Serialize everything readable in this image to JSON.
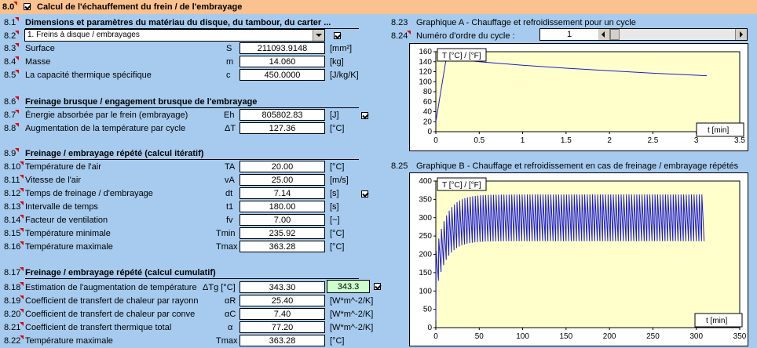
{
  "header": {
    "num": "8.0",
    "title": "Calcul de l'échauffement du frein / de l'embrayage"
  },
  "s81": {
    "num": "8.1",
    "title": "Dimensions et paramètres du matériau du disque, du tambour, du carter ..."
  },
  "s82": {
    "num": "8.2",
    "select_value": "1. Freins à disque / embrayages"
  },
  "s83": {
    "num": "8.3",
    "label": "Surface",
    "sym": "S",
    "value": "211093.9148",
    "unit": "[mm²]"
  },
  "s84": {
    "num": "8.4",
    "label": "Masse",
    "sym": "m",
    "value": "14.060",
    "unit": "[kg]"
  },
  "s85": {
    "num": "8.5",
    "label": "La capacité thermique spécifique",
    "sym": "c",
    "value": "450.0000",
    "unit": "[J/kg/K]"
  },
  "s86": {
    "num": "8.6",
    "title": "Freinage brusque / engagement brusque de l'embrayage"
  },
  "s87": {
    "num": "8.7",
    "label": "Énergie absorbée par le frein (embrayage)",
    "sym": "Eh",
    "value": "805802.83",
    "unit": "[J]"
  },
  "s88": {
    "num": "8.8",
    "label": "Augmentation de la température par cycle",
    "sym": "ΔT",
    "value": "127.36",
    "unit": "[°C]"
  },
  "s89": {
    "num": "8.9",
    "title": "Freinage / embrayage répété (calcul itératif)"
  },
  "s810": {
    "num": "8.10",
    "label": "Température de l'air",
    "sym": "TA",
    "value": "20.00",
    "unit": "[°C]"
  },
  "s811": {
    "num": "8.11",
    "label": "Vitesse de l'air",
    "sym": "vA",
    "value": "25.00",
    "unit": "[m/s]"
  },
  "s812": {
    "num": "8.12",
    "label": "Temps de freinage / d'embrayage",
    "sym": "dt",
    "value": "7.14",
    "unit": "[s]"
  },
  "s813": {
    "num": "8.13",
    "label": "Intervalle de temps",
    "sym": "t1",
    "value": "180.00",
    "unit": "[s]"
  },
  "s814": {
    "num": "8.14",
    "label": "Facteur de ventilation",
    "sym": "fv",
    "value": "7.00",
    "unit": "[~]"
  },
  "s815": {
    "num": "8.15",
    "label": "Température minimale",
    "sym": "Tmin",
    "value": "235.92",
    "unit": "[°C]"
  },
  "s816": {
    "num": "8.16",
    "label": "Température maximale",
    "sym": "Tmax",
    "value": "363.28",
    "unit": "[°C]"
  },
  "s817": {
    "num": "8.17",
    "title": "Freinage / embrayage répété (calcul cumulatif)"
  },
  "s818": {
    "num": "8.18",
    "label": "Estimation de l'augmentation de température",
    "sym": "ΔTg [°C]",
    "value": "343.30",
    "value2": "343.3"
  },
  "s819": {
    "num": "8.19",
    "label": "Coefficient de transfert de chaleur par rayonn",
    "sym": "αR",
    "value": "25.40",
    "unit": "[W*m^-2/K]"
  },
  "s820": {
    "num": "8.20",
    "label": "Coefficient de transfert de chaleur par conve",
    "sym": "αC",
    "value": "7.40",
    "unit": "[W*m^-2/K]"
  },
  "s821": {
    "num": "8.21",
    "label": "Coefficient de transfert thermique total",
    "sym": "α",
    "value": "77.20",
    "unit": "[W*m^-2/K]"
  },
  "s822": {
    "num": "8.22",
    "label": "Température maximale",
    "sym": "Tmax",
    "value": "363.28",
    "unit": "[°C]"
  },
  "s823": {
    "num": "8.23",
    "label": "Graphique A - Chauffage et refroidissement pour un cycle"
  },
  "s824": {
    "num": "8.24",
    "label": "Numéro d'ordre du cycle :",
    "value": "1"
  },
  "s825": {
    "num": "8.25",
    "label": "Graphique B - Chauffage et refroidissement en cas de freinage / embrayage répétés"
  },
  "chart_data": [
    {
      "type": "line",
      "ylabel": "T [°C] / [°F]",
      "xlabel": "t [min]",
      "xlim": [
        0,
        3.5
      ],
      "ylim": [
        0,
        160
      ],
      "xticks": [
        "0",
        "0.5",
        "1",
        "1.5",
        "2",
        "2.5",
        "3",
        "3.5"
      ],
      "yticks": [
        "0",
        "20",
        "40",
        "60",
        "80",
        "100",
        "120",
        "140",
        "160"
      ],
      "series": [
        {
          "color": "#1c1cd0",
          "x": [
            0,
            0.12,
            0.5,
            1.0,
            1.5,
            2.0,
            2.5,
            3.12
          ],
          "y": [
            20,
            147,
            140,
            133,
            127,
            122,
            117,
            112
          ]
        }
      ]
    },
    {
      "type": "line",
      "ylabel": "T [°C] / [°F]",
      "xlabel": "t [min]",
      "xlim": [
        0,
        350
      ],
      "ylim": [
        0,
        400
      ],
      "xticks": [
        "0",
        "50",
        "100",
        "150",
        "200",
        "250",
        "300",
        "350"
      ],
      "yticks": [
        "0",
        "50",
        "100",
        "150",
        "200",
        "250",
        "300",
        "350",
        "400"
      ],
      "series": [
        {
          "color": "#1c1cd0",
          "start": 20,
          "tmin": 235.92,
          "tmax": 363.28,
          "cycles": 103,
          "period": 3.0,
          "t_end": 310
        }
      ]
    }
  ]
}
